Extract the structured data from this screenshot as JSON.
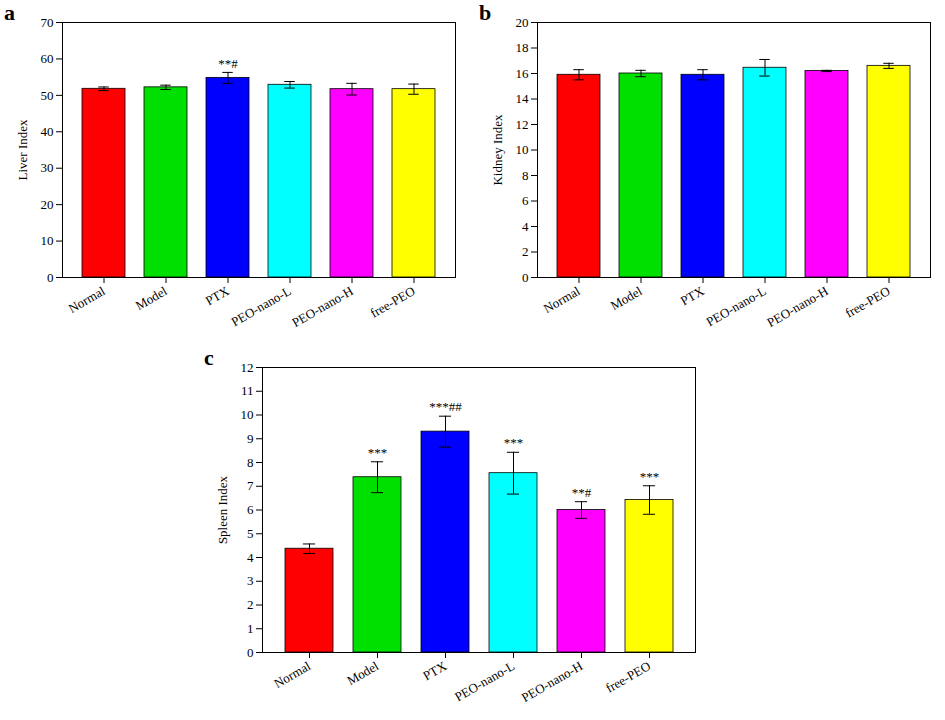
{
  "chart_data": [
    {
      "type": "bar",
      "title": "a",
      "y_label": "Liver Index",
      "categories": [
        "Normal",
        "Model",
        "PTX",
        "PEO-nano-L",
        "PEO-nano-H",
        "free-PEO"
      ],
      "values": [
        51.8,
        52.2,
        54.8,
        52.9,
        51.7,
        51.7
      ],
      "errors": [
        0.5,
        0.6,
        1.5,
        0.9,
        1.6,
        1.4
      ],
      "annotations": [
        null,
        null,
        "**#",
        null,
        null,
        null
      ],
      "colors": [
        "#ff0000",
        "#00e000",
        "#0000ff",
        "#00ffff",
        "#ff00ff",
        "#ffff00"
      ],
      "ylim": [
        0,
        70
      ],
      "yticks": [
        0,
        10,
        20,
        30,
        40,
        50,
        60,
        70
      ]
    },
    {
      "type": "bar",
      "title": "b",
      "y_label": "Kidney Index",
      "categories": [
        "Normal",
        "Model",
        "PTX",
        "PEO-nano-L",
        "PEO-nano-H",
        "free-PEO"
      ],
      "values": [
        15.9,
        16.0,
        15.9,
        16.45,
        16.2,
        16.6
      ],
      "errors": [
        0.4,
        0.25,
        0.4,
        0.65,
        0.05,
        0.2
      ],
      "annotations": [
        null,
        null,
        null,
        null,
        null,
        null
      ],
      "colors": [
        "#ff0000",
        "#00e000",
        "#0000ff",
        "#00ffff",
        "#ff00ff",
        "#ffff00"
      ],
      "ylim": [
        0,
        20
      ],
      "yticks": [
        0,
        2,
        4,
        6,
        8,
        10,
        12,
        14,
        16,
        18,
        20
      ]
    },
    {
      "type": "bar",
      "title": "c",
      "y_label": "Spleen Index",
      "categories": [
        "Normal",
        "Model",
        "PTX",
        "PEO-nano-L",
        "PEO-nano-H",
        "free-PEO"
      ],
      "values": [
        4.37,
        7.38,
        9.3,
        7.55,
        6.0,
        6.42
      ],
      "errors": [
        0.2,
        0.65,
        0.65,
        0.88,
        0.35,
        0.6
      ],
      "annotations": [
        null,
        "***",
        "***##",
        "***",
        "**#",
        "***"
      ],
      "colors": [
        "#ff0000",
        "#00e000",
        "#0000ff",
        "#00ffff",
        "#ff00ff",
        "#ffff00"
      ],
      "ylim": [
        0,
        12
      ],
      "yticks": [
        0,
        1,
        2,
        3,
        4,
        5,
        6,
        7,
        8,
        9,
        10,
        11,
        12
      ]
    }
  ]
}
